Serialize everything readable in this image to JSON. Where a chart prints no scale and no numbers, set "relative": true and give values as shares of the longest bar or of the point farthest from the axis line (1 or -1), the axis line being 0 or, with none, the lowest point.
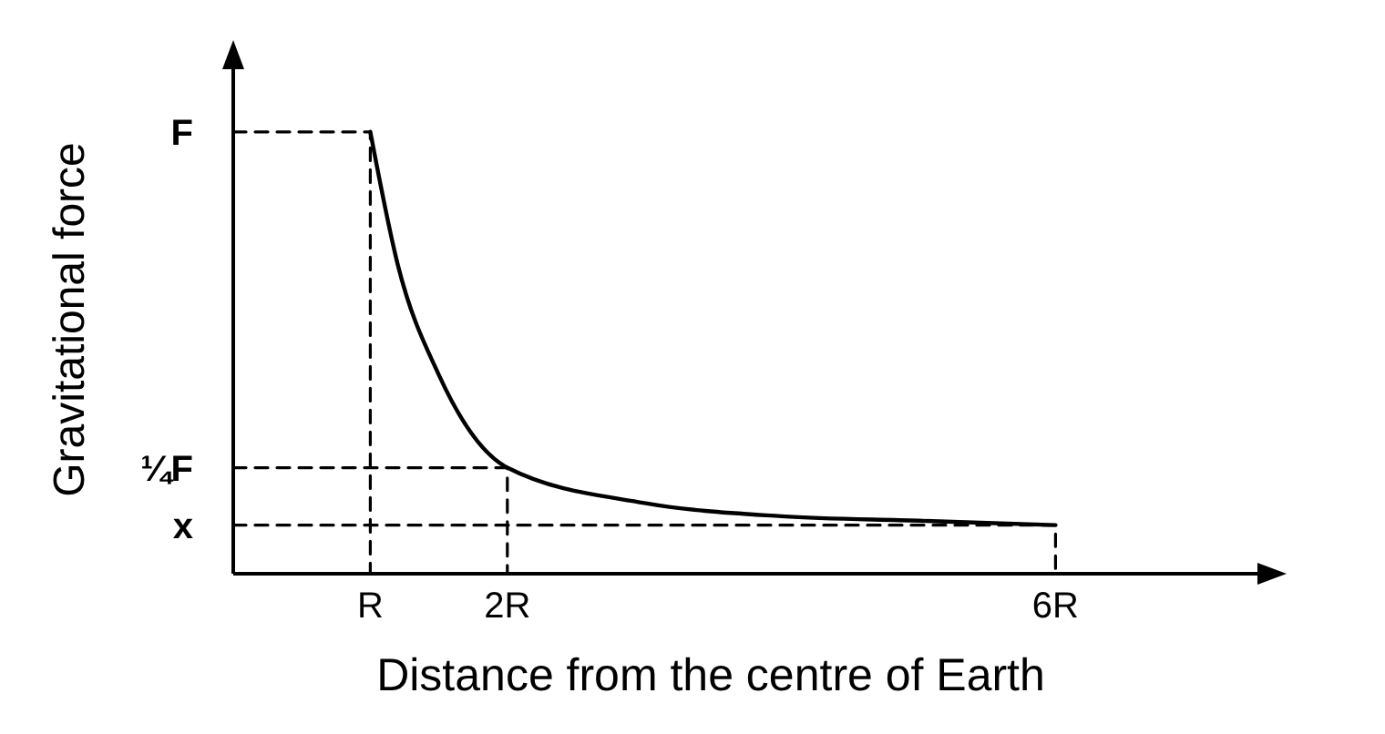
{
  "chart_data": {
    "type": "line",
    "relative": true,
    "xlabel": "Distance from the centre of Earth",
    "ylabel": "Gravitational force",
    "xlim": [
      0,
      7.5
    ],
    "xticks": [
      {
        "value": 1,
        "label": "R"
      },
      {
        "value": 2,
        "label": "2R"
      },
      {
        "value": 6,
        "label": "6R"
      }
    ],
    "annotations": [
      "F",
      "¼F",
      "x"
    ],
    "grid": false,
    "marker": "none",
    "series": [
      {
        "color": "#000000",
        "line_style": "solid",
        "x": [
          1,
          1.2,
          1.5,
          2,
          3,
          4,
          5,
          6
        ],
        "values": [
          1,
          0.7,
          0.45,
          0.24,
          0.16,
          0.13,
          0.12,
          0.11
        ]
      },
      {
        "color": "#000000",
        "line_style": "dashed",
        "x": [
          0,
          1,
          1
        ],
        "values": [
          1,
          1,
          0
        ]
      },
      {
        "color": "#000000",
        "line_style": "dashed",
        "x": [
          0,
          2,
          2
        ],
        "values": [
          0.24,
          0.24,
          0
        ]
      },
      {
        "color": "#000000",
        "line_style": "dashed",
        "x": [
          0,
          6,
          6
        ],
        "values": [
          0.11,
          0.11,
          0
        ]
      }
    ]
  }
}
